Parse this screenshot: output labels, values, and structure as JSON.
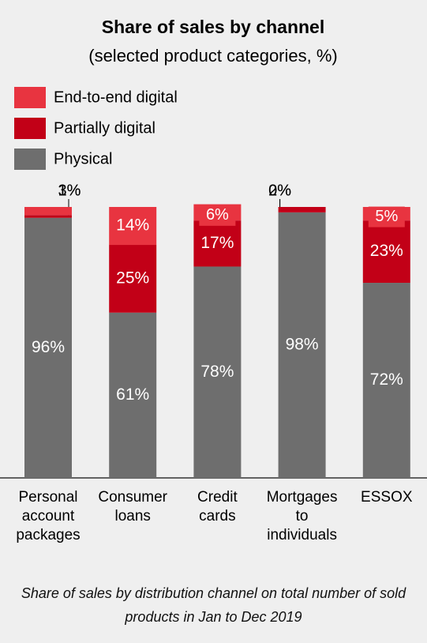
{
  "chart_data": {
    "type": "stacked_bar",
    "title": "Share of sales by channel",
    "subtitle": "(selected product categories, %)",
    "categories": [
      "Personal account packages",
      "Consumer loans",
      "Credit cards",
      "Mortgages to individuals",
      "ESSOX"
    ],
    "series": [
      {
        "name": "Physical",
        "color": "#6e6e6e",
        "values": [
          96,
          61,
          78,
          98,
          72
        ],
        "value_labels": [
          "96%",
          "61%",
          "78%",
          "98%",
          "72%"
        ]
      },
      {
        "name": "Partially digital",
        "color": "#c20017",
        "values": [
          1,
          25,
          17,
          2,
          23
        ],
        "value_labels": [
          "1%",
          "25%",
          "17%",
          "2%",
          "23%"
        ]
      },
      {
        "name": "End-to-end digital",
        "color": "#e83440",
        "values": [
          3,
          14,
          6,
          0,
          5
        ],
        "value_labels": [
          "3%",
          "14%",
          "6%",
          "0%",
          "5%"
        ]
      }
    ],
    "ylim": [
      0,
      100
    ],
    "note": "Share of sales by distribution channel on total number of sold products in Jan to Dec 2019"
  }
}
